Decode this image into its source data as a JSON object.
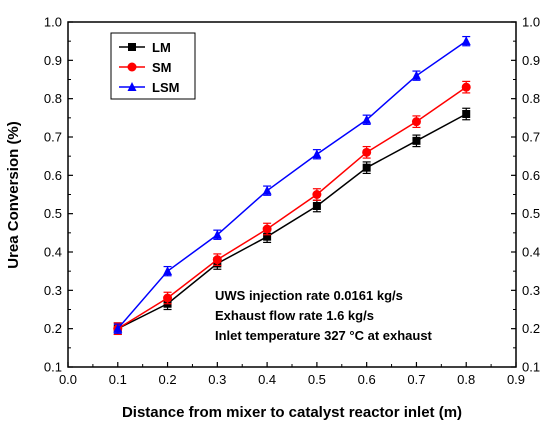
{
  "chart_data": {
    "type": "line",
    "xlabel": "Distance from mixer to catalyst reactor inlet (m)",
    "ylabel": "Urea Conversion (%)",
    "xlim": [
      0.0,
      0.9
    ],
    "ylim": [
      0.1,
      1.0
    ],
    "xticks": [
      "0.0",
      "0.1",
      "0.2",
      "0.3",
      "0.4",
      "0.5",
      "0.6",
      "0.7",
      "0.8",
      "0.9"
    ],
    "yticks": [
      "0.1",
      "0.2",
      "0.3",
      "0.4",
      "0.5",
      "0.6",
      "0.7",
      "0.8",
      "0.9",
      "1.0"
    ],
    "grid": false,
    "legend_position": "top-left",
    "x": [
      0.1,
      0.2,
      0.3,
      0.4,
      0.5,
      0.6,
      0.7,
      0.8
    ],
    "series": [
      {
        "name": "LM",
        "color": "#000000",
        "marker": "square",
        "values": [
          0.2,
          0.265,
          0.37,
          0.44,
          0.52,
          0.62,
          0.69,
          0.76
        ],
        "error": 0.015
      },
      {
        "name": "SM",
        "color": "#ff0000",
        "marker": "circle",
        "values": [
          0.2,
          0.28,
          0.38,
          0.46,
          0.55,
          0.66,
          0.74,
          0.83
        ],
        "error": 0.015
      },
      {
        "name": "LSM",
        "color": "#0000ff",
        "marker": "triangle",
        "values": [
          0.2,
          0.35,
          0.445,
          0.56,
          0.655,
          0.745,
          0.86,
          0.95
        ],
        "error": 0.012
      }
    ],
    "annotations": [
      "UWS injection rate 0.0161 kg/s",
      "Exhaust flow rate 1.6 kg/s",
      "Inlet temperature 327 °C at exhaust"
    ]
  }
}
